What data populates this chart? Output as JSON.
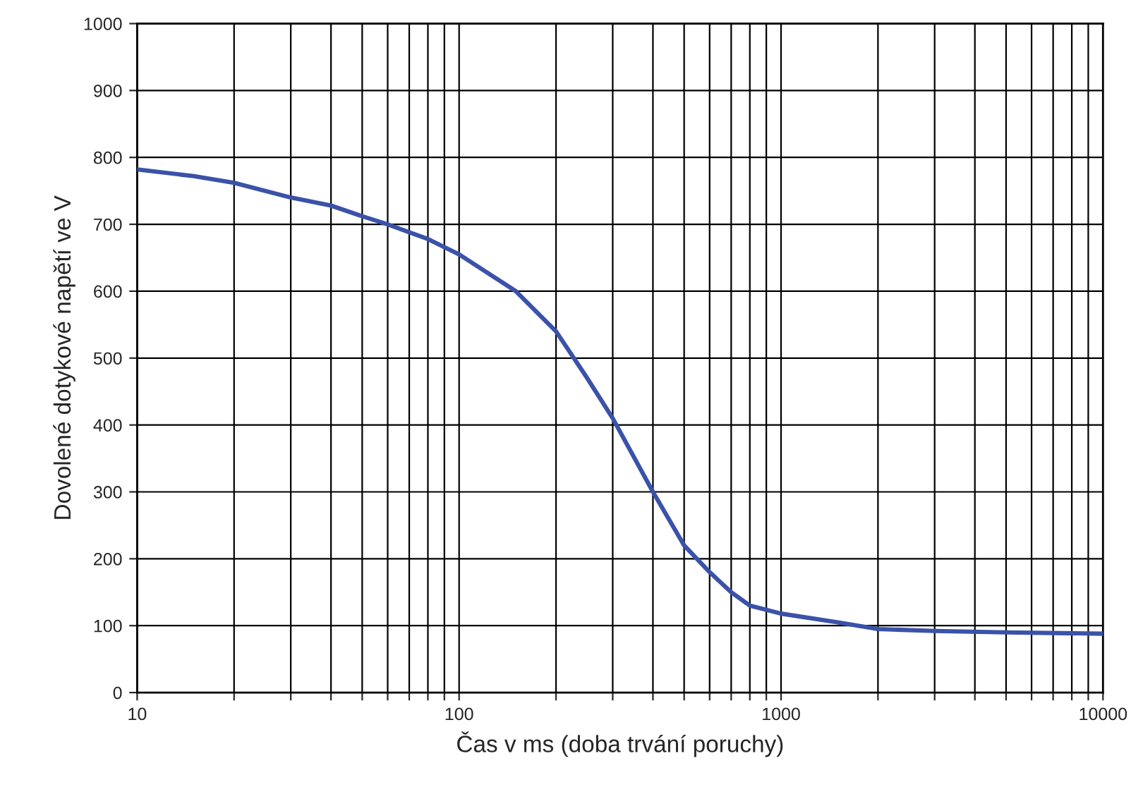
{
  "chart_data": {
    "type": "line",
    "xlabel": "Čas v ms (doba trvání poruchy)",
    "ylabel": "Dovolené dotykové napětí ve V",
    "log": "x",
    "grid": true,
    "marker": "none",
    "line_style": "solid",
    "xlim": [
      10,
      10000
    ],
    "ylim": [
      0,
      1000
    ],
    "xticks": [
      10,
      {
        "value": 20,
        "label": null
      },
      {
        "value": 30,
        "label": null
      },
      {
        "value": 40,
        "label": null
      },
      {
        "value": 50,
        "label": null
      },
      {
        "value": 60,
        "label": null
      },
      {
        "value": 70,
        "label": null
      },
      {
        "value": 80,
        "label": null
      },
      {
        "value": 90,
        "label": null
      },
      100,
      {
        "value": 200,
        "label": null
      },
      {
        "value": 300,
        "label": null
      },
      {
        "value": 400,
        "label": null
      },
      {
        "value": 500,
        "label": null
      },
      {
        "value": 600,
        "label": null
      },
      {
        "value": 700,
        "label": null
      },
      {
        "value": 800,
        "label": null
      },
      {
        "value": 900,
        "label": null
      },
      1000,
      {
        "value": 2000,
        "label": null
      },
      {
        "value": 3000,
        "label": null
      },
      {
        "value": 4000,
        "label": null
      },
      {
        "value": 5000,
        "label": null
      },
      {
        "value": 6000,
        "label": null
      },
      {
        "value": 7000,
        "label": null
      },
      {
        "value": 8000,
        "label": null
      },
      {
        "value": 9000,
        "label": null
      },
      10000
    ],
    "yticks": [
      0,
      100,
      200,
      300,
      400,
      500,
      600,
      700,
      800,
      900,
      1000
    ],
    "series": [
      {
        "color": "#3a52a8",
        "x": [
          10,
          15,
          20,
          30,
          40,
          50,
          60,
          70,
          80,
          100,
          150,
          200,
          250,
          300,
          400,
          500,
          600,
          700,
          800,
          1000,
          1500,
          2000,
          3000,
          5000,
          10000
        ],
        "values": [
          782,
          772,
          762,
          740,
          728,
          712,
          700,
          688,
          678,
          655,
          600,
          540,
          470,
          410,
          300,
          220,
          180,
          150,
          130,
          118,
          105,
          95,
          92,
          90,
          88
        ]
      }
    ]
  }
}
